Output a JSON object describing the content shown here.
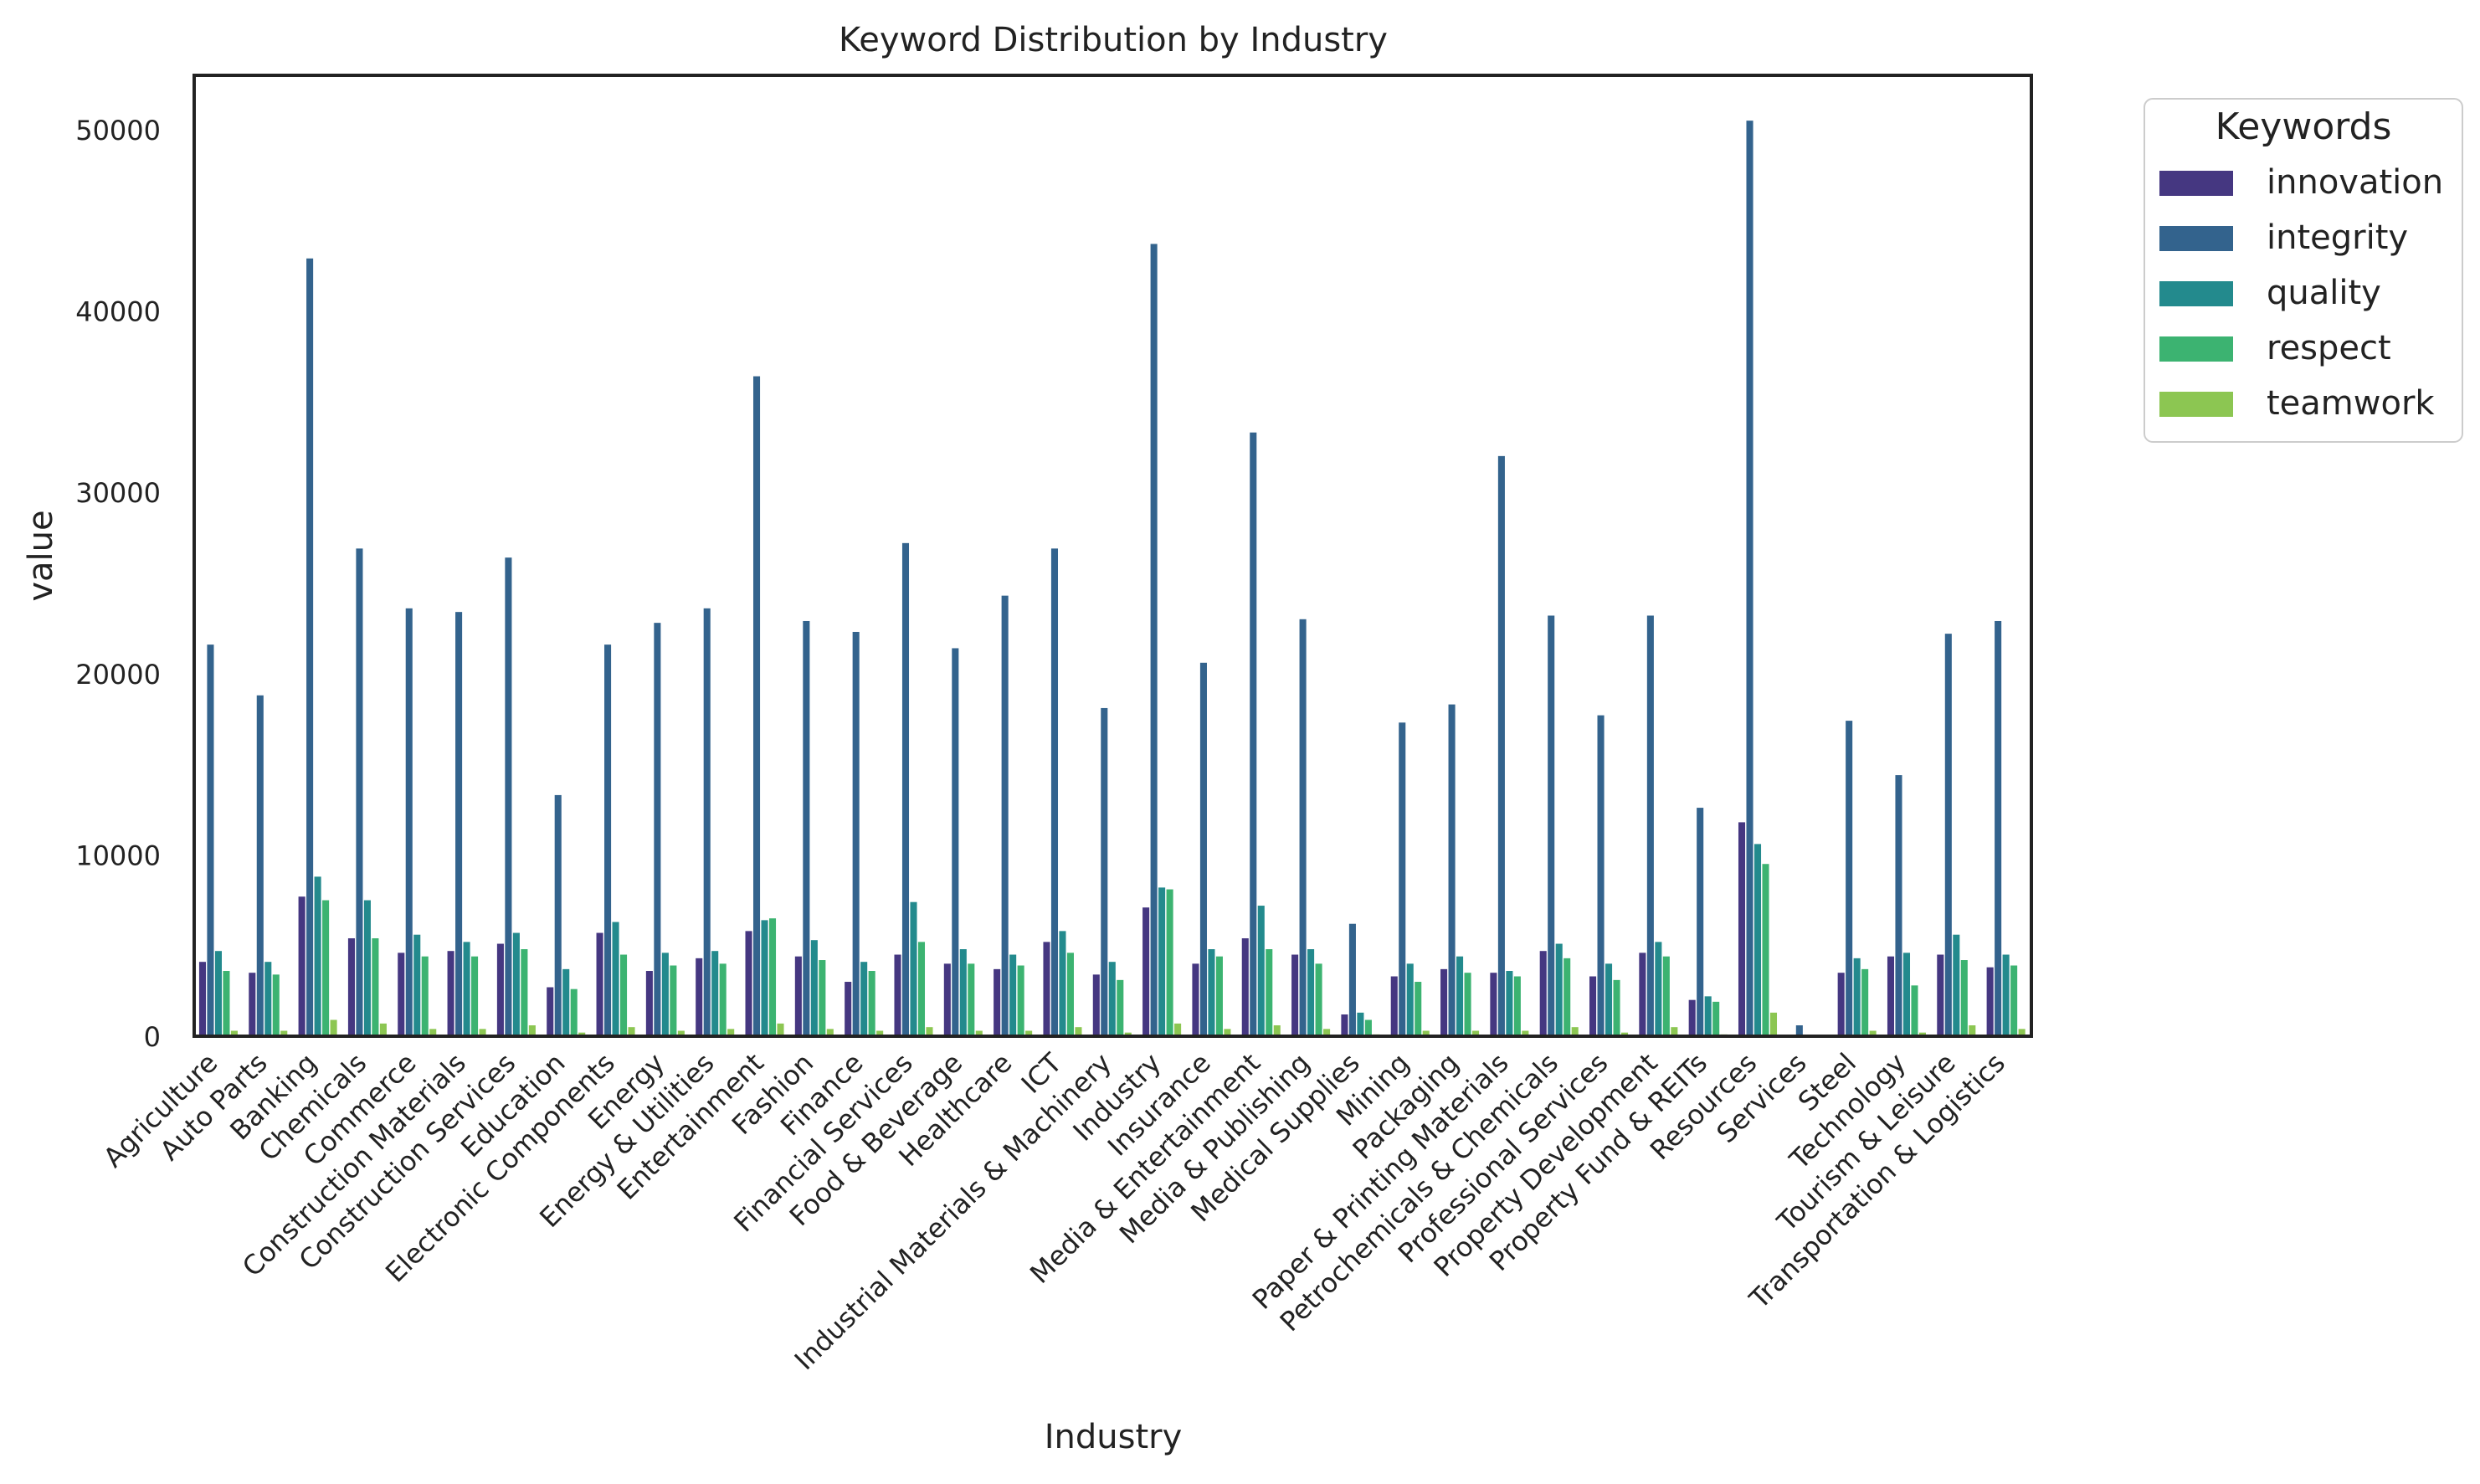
{
  "chart_data": {
    "type": "bar",
    "title": "Keyword Distribution by Industry",
    "xlabel": "Industry",
    "ylabel": "value",
    "ylim": [
      0,
      53000
    ],
    "yticks": [
      "0",
      "10000",
      "20000",
      "30000",
      "40000",
      "50000"
    ],
    "ytick_values": [
      0,
      10000,
      20000,
      30000,
      40000,
      50000
    ],
    "grid": false,
    "legend_title": "Keywords",
    "legend_position": "outside-top-right",
    "categories": [
      "Agriculture",
      "Auto Parts",
      "Banking",
      "Chemicals",
      "Commerce",
      "Construction Materials",
      "Construction Services",
      "Education",
      "Electronic Components",
      "Energy",
      "Energy & Utilities",
      "Entertainment",
      "Fashion",
      "Finance",
      "Financial Services",
      "Food & Beverage",
      "Healthcare",
      "ICT",
      "Industrial Materials & Machinery",
      "Industry",
      "Insurance",
      "Media & Entertainment",
      "Media & Publishing",
      "Medical Supplies",
      "Mining",
      "Packaging",
      "Paper & Printing Materials",
      "Petrochemicals & Chemicals",
      "Professional Services",
      "Property Development",
      "Property Fund & REITs",
      "Resources",
      "Services",
      "Steel",
      "Technology",
      "Tourism & Leisure",
      "Transportation & Logistics"
    ],
    "series": [
      {
        "name": "innovation",
        "color": "#453781",
        "values": [
          4100,
          3500,
          7700,
          5400,
          4600,
          4700,
          5100,
          2700,
          5700,
          3600,
          4300,
          5800,
          4400,
          3000,
          4500,
          4000,
          3700,
          5200,
          3400,
          7100,
          4000,
          5400,
          4500,
          1200,
          3300,
          3700,
          3500,
          4700,
          3300,
          4600,
          2000,
          11800,
          0,
          3500,
          4400,
          4500,
          3800
        ]
      },
      {
        "name": "integrity",
        "color": "#33638d",
        "values": [
          21600,
          18800,
          42900,
          26900,
          23600,
          23400,
          26400,
          13300,
          21600,
          22800,
          23600,
          36400,
          22900,
          22300,
          27200,
          21400,
          24300,
          26900,
          18100,
          43700,
          20600,
          33300,
          23000,
          6200,
          17300,
          18300,
          32000,
          23200,
          17700,
          23200,
          12600,
          50500,
          600,
          17400,
          14400,
          22200,
          22900
        ]
      },
      {
        "name": "quality",
        "color": "#238a8d",
        "values": [
          4700,
          4100,
          8800,
          7500,
          5600,
          5200,
          5700,
          3700,
          6300,
          4600,
          4700,
          6400,
          5300,
          4100,
          7400,
          4800,
          4500,
          5800,
          4100,
          8200,
          4800,
          7200,
          4800,
          1300,
          4000,
          4400,
          3600,
          5100,
          4000,
          5200,
          2200,
          10600,
          0,
          4300,
          4600,
          5600,
          4500
        ]
      },
      {
        "name": "respect",
        "color": "#3cb371",
        "values": [
          3600,
          3400,
          7500,
          5400,
          4400,
          4400,
          4800,
          2600,
          4500,
          3900,
          4000,
          6500,
          4200,
          3600,
          5200,
          4000,
          3900,
          4600,
          3100,
          8100,
          4400,
          4800,
          4000,
          900,
          3000,
          3500,
          3300,
          4300,
          3100,
          4400,
          1900,
          9500,
          0,
          3700,
          2800,
          4200,
          3900
        ]
      },
      {
        "name": "teamwork",
        "color": "#8cc652",
        "values": [
          300,
          300,
          900,
          700,
          400,
          400,
          600,
          200,
          500,
          300,
          400,
          700,
          400,
          300,
          500,
          300,
          300,
          500,
          200,
          700,
          400,
          600,
          400,
          100,
          300,
          300,
          300,
          500,
          200,
          500,
          100,
          1300,
          0,
          300,
          200,
          600,
          400
        ]
      }
    ]
  }
}
